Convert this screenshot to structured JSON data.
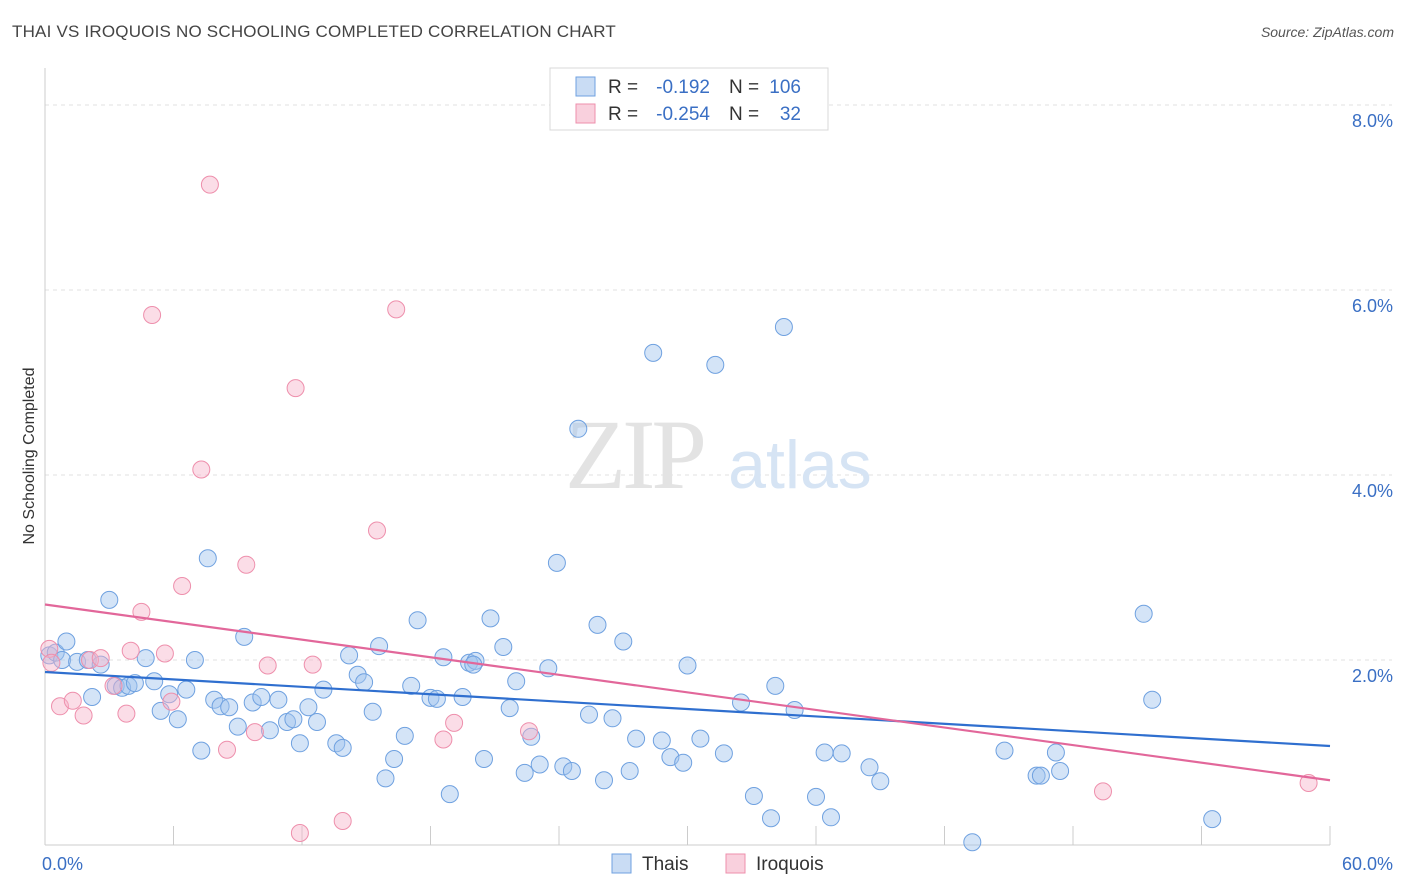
{
  "title": "THAI VS IROQUOIS NO SCHOOLING COMPLETED CORRELATION CHART",
  "source": "Source: ZipAtlas.com",
  "watermark": {
    "zip": "ZIP",
    "atlas": "atlas"
  },
  "stats_legend": [
    {
      "r_label": "R =",
      "r_value": "-0.192",
      "n_label": "N =",
      "n_value": "106",
      "color": "#6fa1e0"
    },
    {
      "r_label": "R =",
      "r_value": "-0.254",
      "n_label": "N =",
      "n_value": "32",
      "color": "#ee8fac"
    }
  ],
  "chart_data": {
    "type": "scatter",
    "title": "THAI VS IROQUOIS NO SCHOOLING COMPLETED CORRELATION CHART",
    "xlabel": "",
    "ylabel": "No Schooling Completed",
    "xlim": [
      0,
      60
    ],
    "ylim": [
      0,
      8.4
    ],
    "x_tick_labels": [
      "0.0%",
      "60.0%"
    ],
    "y_tick_labels": [
      "2.0%",
      "4.0%",
      "6.0%",
      "8.0%"
    ],
    "y_ticks": [
      2,
      4,
      6,
      8
    ],
    "grid": true,
    "legend_position": "bottom",
    "series": [
      {
        "name": "Thais",
        "color": "#6fa1e0",
        "trend": {
          "x": [
            0,
            60
          ],
          "y": [
            1.87,
            1.07
          ]
        },
        "points": [
          [
            0.2,
            2.05
          ],
          [
            0.5,
            2.08
          ],
          [
            0.8,
            2.0
          ],
          [
            1.0,
            2.2
          ],
          [
            1.5,
            1.98
          ],
          [
            2.0,
            2.0
          ],
          [
            2.2,
            1.6
          ],
          [
            2.6,
            1.95
          ],
          [
            3.0,
            2.65
          ],
          [
            3.3,
            1.72
          ],
          [
            3.6,
            1.7
          ],
          [
            3.9,
            1.72
          ],
          [
            4.2,
            1.75
          ],
          [
            4.7,
            2.02
          ],
          [
            5.1,
            1.77
          ],
          [
            5.4,
            1.45
          ],
          [
            5.8,
            1.63
          ],
          [
            6.2,
            1.36
          ],
          [
            6.6,
            1.68
          ],
          [
            7.3,
            1.02
          ],
          [
            7.6,
            3.1
          ],
          [
            7.9,
            1.57
          ],
          [
            8.2,
            1.5
          ],
          [
            8.6,
            1.49
          ],
          [
            9.0,
            1.28
          ],
          [
            9.3,
            2.25
          ],
          [
            9.7,
            1.54
          ],
          [
            10.1,
            1.6
          ],
          [
            10.5,
            1.24
          ],
          [
            10.9,
            1.57
          ],
          [
            11.3,
            1.33
          ],
          [
            11.6,
            1.36
          ],
          [
            11.9,
            1.1
          ],
          [
            12.3,
            1.49
          ],
          [
            12.7,
            1.33
          ],
          [
            13.0,
            1.68
          ],
          [
            13.6,
            1.1
          ],
          [
            13.9,
            1.05
          ],
          [
            14.2,
            2.05
          ],
          [
            14.6,
            1.84
          ],
          [
            14.9,
            1.76
          ],
          [
            15.3,
            1.44
          ],
          [
            15.6,
            2.15
          ],
          [
            15.9,
            0.72
          ],
          [
            16.3,
            0.93
          ],
          [
            16.8,
            1.18
          ],
          [
            17.1,
            1.72
          ],
          [
            17.4,
            2.43
          ],
          [
            18.0,
            1.59
          ],
          [
            18.3,
            1.58
          ],
          [
            18.6,
            2.03
          ],
          [
            18.9,
            0.55
          ],
          [
            19.5,
            1.6
          ],
          [
            19.8,
            1.97
          ],
          [
            20.1,
            1.99
          ],
          [
            20.5,
            0.93
          ],
          [
            20.8,
            2.45
          ],
          [
            21.4,
            2.14
          ],
          [
            21.7,
            1.48
          ],
          [
            22.0,
            1.77
          ],
          [
            22.4,
            0.78
          ],
          [
            22.7,
            1.17
          ],
          [
            23.1,
            0.87
          ],
          [
            23.5,
            1.91
          ],
          [
            23.9,
            3.05
          ],
          [
            24.2,
            0.85
          ],
          [
            24.6,
            0.8
          ],
          [
            24.9,
            4.5
          ],
          [
            25.4,
            1.41
          ],
          [
            25.8,
            2.38
          ],
          [
            26.1,
            0.7
          ],
          [
            26.5,
            1.37
          ],
          [
            27.0,
            2.2
          ],
          [
            27.3,
            0.8
          ],
          [
            27.6,
            1.15
          ],
          [
            28.4,
            5.32
          ],
          [
            28.8,
            1.13
          ],
          [
            29.2,
            0.95
          ],
          [
            29.8,
            0.89
          ],
          [
            30.0,
            1.94
          ],
          [
            30.6,
            1.15
          ],
          [
            31.3,
            5.19
          ],
          [
            31.7,
            0.99
          ],
          [
            32.5,
            1.54
          ],
          [
            33.1,
            0.53
          ],
          [
            33.9,
            0.29
          ],
          [
            34.1,
            1.72
          ],
          [
            34.5,
            5.6
          ],
          [
            35.0,
            1.46
          ],
          [
            36.0,
            0.52
          ],
          [
            36.4,
            1.0
          ],
          [
            36.7,
            0.3
          ],
          [
            37.2,
            0.99
          ],
          [
            38.5,
            0.84
          ],
          [
            39.0,
            0.69
          ],
          [
            43.3,
            0.03
          ],
          [
            44.8,
            1.02
          ],
          [
            46.3,
            0.75
          ],
          [
            46.5,
            0.75
          ],
          [
            47.2,
            1.0
          ],
          [
            47.4,
            0.8
          ],
          [
            51.3,
            2.5
          ],
          [
            51.7,
            1.57
          ],
          [
            54.5,
            0.28
          ],
          [
            7.0,
            2.0
          ],
          [
            20.0,
            1.95
          ]
        ]
      },
      {
        "name": "Iroquois",
        "color": "#ee8fac",
        "trend": {
          "x": [
            0,
            60
          ],
          "y": [
            2.6,
            0.7
          ]
        },
        "points": [
          [
            0.2,
            2.12
          ],
          [
            0.3,
            1.97
          ],
          [
            0.7,
            1.5
          ],
          [
            1.3,
            1.56
          ],
          [
            1.8,
            1.4
          ],
          [
            2.1,
            2.0
          ],
          [
            2.6,
            2.02
          ],
          [
            3.2,
            1.72
          ],
          [
            3.8,
            1.42
          ],
          [
            4.0,
            2.1
          ],
          [
            4.5,
            2.52
          ],
          [
            5.0,
            5.73
          ],
          [
            5.6,
            2.07
          ],
          [
            5.9,
            1.55
          ],
          [
            6.4,
            2.8
          ],
          [
            7.3,
            4.06
          ],
          [
            7.7,
            7.14
          ],
          [
            8.5,
            1.03
          ],
          [
            9.4,
            3.03
          ],
          [
            9.8,
            1.22
          ],
          [
            10.4,
            1.94
          ],
          [
            11.7,
            4.94
          ],
          [
            11.9,
            0.13
          ],
          [
            12.5,
            1.95
          ],
          [
            13.9,
            0.26
          ],
          [
            15.5,
            3.4
          ],
          [
            16.4,
            5.79
          ],
          [
            18.6,
            1.14
          ],
          [
            19.1,
            1.32
          ],
          [
            22.6,
            1.23
          ],
          [
            49.4,
            0.58
          ],
          [
            59.0,
            0.67
          ]
        ]
      }
    ]
  }
}
